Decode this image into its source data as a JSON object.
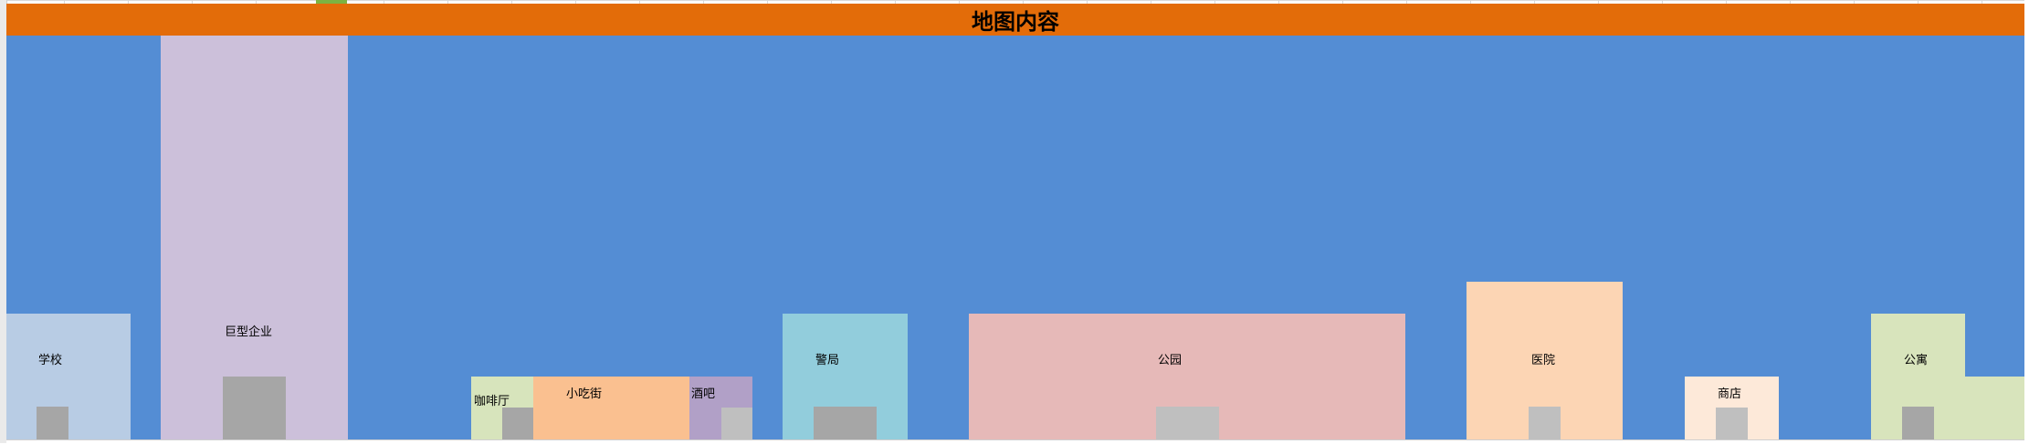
{
  "title": "地图内容",
  "colors": {
    "header": "#e36c09",
    "map_background": "#548dd4",
    "door_dark": "#a6a6a6",
    "door_light": "#bfbfbf"
  },
  "buildings": {
    "school": {
      "label": "学校",
      "color": "#b8cce4"
    },
    "enterprise": {
      "label": "巨型企业",
      "color": "#ccc0da"
    },
    "cafe": {
      "label": "咖啡厅",
      "color": "#d7e4bc"
    },
    "snack_street": {
      "label": "小吃街",
      "color": "#fac090"
    },
    "bar": {
      "label": "酒吧",
      "color": "#b1a0c7"
    },
    "police": {
      "label": "警局",
      "color": "#92cddc"
    },
    "park": {
      "label": "公园",
      "color": "#e6b9b8"
    },
    "hospital": {
      "label": "医院",
      "color": "#fcd5b4"
    },
    "shop": {
      "label": "商店",
      "color": "#fde9d9"
    },
    "apartment": {
      "label": "公寓",
      "color": "#d8e4bc"
    }
  }
}
